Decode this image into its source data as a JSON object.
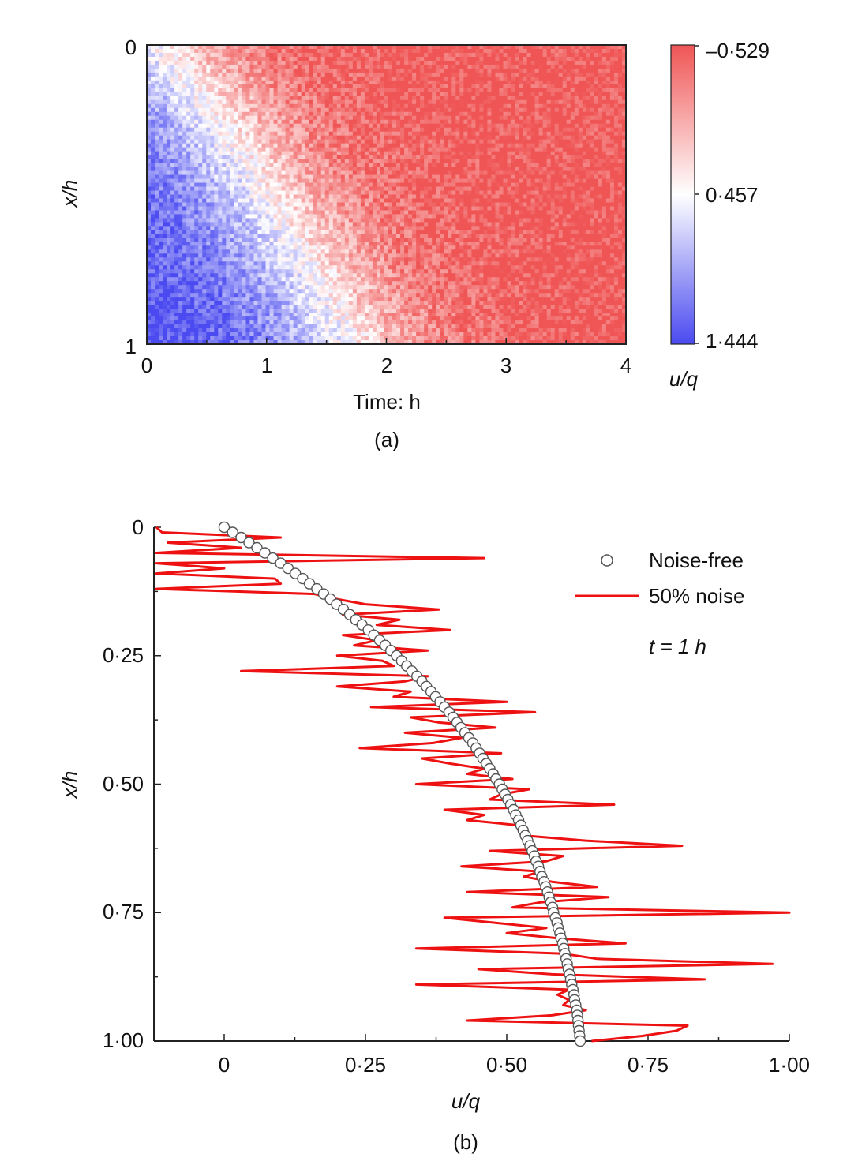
{
  "chart_data": [
    {
      "type": "heatmap",
      "panel_label": "(a)",
      "xlabel": "Time: h",
      "ylabel": "x/h",
      "xlim": [
        0,
        4
      ],
      "ylim": [
        1,
        0
      ],
      "x_ticks": [
        "0",
        "1",
        "2",
        "3",
        "4"
      ],
      "y_ticks": [
        "0",
        "1"
      ],
      "colorbar": {
        "label": "u/q",
        "ticks": [
          "–0·529",
          "0·457",
          "1·444"
        ],
        "values": [
          -0.529,
          0.457,
          1.444
        ],
        "colors": [
          "#f05555",
          "#ffffff",
          "#4a4af0"
        ]
      },
      "description_values": "u/q high (blue, ~1.4) near x/h=1 at t=0, transitions through white (~0.46) along a front moving from t≈0 at x/h=0 to t≈1.7 at x/h=1, red (~-0.5) elsewhere; speckled noise"
    },
    {
      "type": "line",
      "panel_label": "(b)",
      "xlabel": "u/q",
      "ylabel": "x/h",
      "xlim": [
        -0.12,
        1.0
      ],
      "ylim": [
        1.0,
        0
      ],
      "x_ticks": [
        "0",
        "0·25",
        "0·50",
        "0·75",
        "1·00"
      ],
      "x_tick_values": [
        0,
        0.25,
        0.5,
        0.75,
        1.0
      ],
      "y_ticks": [
        "0",
        "0·25",
        "0·50",
        "0·75",
        "1·00"
      ],
      "y_tick_values": [
        0,
        0.25,
        0.5,
        0.75,
        1.0
      ],
      "annotation": "t = 1 h",
      "series": [
        {
          "name": "Noise-free",
          "style": "open-circle",
          "color": "#555555",
          "x": [
            0.0,
            0.015,
            0.03,
            0.044,
            0.058,
            0.072,
            0.086,
            0.1,
            0.113,
            0.126,
            0.139,
            0.151,
            0.164,
            0.176,
            0.188,
            0.199,
            0.211,
            0.222,
            0.233,
            0.244,
            0.255,
            0.265,
            0.275,
            0.285,
            0.295,
            0.305,
            0.314,
            0.323,
            0.332,
            0.341,
            0.35,
            0.358,
            0.366,
            0.374,
            0.382,
            0.39,
            0.398,
            0.405,
            0.412,
            0.419,
            0.426,
            0.433,
            0.44,
            0.446,
            0.452,
            0.458,
            0.464,
            0.47,
            0.476,
            0.481,
            0.487,
            0.492,
            0.497,
            0.502,
            0.507,
            0.512,
            0.516,
            0.521,
            0.525,
            0.529,
            0.533,
            0.537,
            0.541,
            0.545,
            0.549,
            0.552,
            0.556,
            0.559,
            0.562,
            0.566,
            0.569,
            0.572,
            0.575,
            0.578,
            0.581,
            0.583,
            0.586,
            0.589,
            0.591,
            0.594,
            0.596,
            0.599,
            0.601,
            0.603,
            0.605,
            0.607,
            0.609,
            0.611,
            0.613,
            0.615,
            0.617,
            0.619,
            0.62,
            0.622,
            0.624,
            0.625,
            0.626,
            0.627,
            0.628,
            0.629,
            0.63
          ],
          "y": [
            0.0,
            0.01,
            0.02,
            0.03,
            0.04,
            0.05,
            0.06,
            0.07,
            0.08,
            0.09,
            0.1,
            0.11,
            0.12,
            0.13,
            0.14,
            0.15,
            0.16,
            0.17,
            0.18,
            0.19,
            0.2,
            0.21,
            0.22,
            0.23,
            0.24,
            0.25,
            0.26,
            0.27,
            0.28,
            0.29,
            0.3,
            0.31,
            0.32,
            0.33,
            0.34,
            0.35,
            0.36,
            0.37,
            0.38,
            0.39,
            0.4,
            0.41,
            0.42,
            0.43,
            0.44,
            0.45,
            0.46,
            0.47,
            0.48,
            0.49,
            0.5,
            0.51,
            0.52,
            0.53,
            0.54,
            0.55,
            0.56,
            0.57,
            0.58,
            0.59,
            0.6,
            0.61,
            0.62,
            0.63,
            0.64,
            0.65,
            0.66,
            0.67,
            0.68,
            0.69,
            0.7,
            0.71,
            0.72,
            0.73,
            0.74,
            0.75,
            0.76,
            0.77,
            0.78,
            0.79,
            0.8,
            0.81,
            0.82,
            0.83,
            0.84,
            0.85,
            0.86,
            0.87,
            0.88,
            0.89,
            0.9,
            0.91,
            0.92,
            0.93,
            0.94,
            0.95,
            0.96,
            0.97,
            0.98,
            0.99,
            1.0
          ]
        },
        {
          "name": "50% noise",
          "style": "line",
          "color": "#ee1111",
          "x": [
            -0.12,
            -0.11,
            0.1,
            -0.1,
            0.03,
            -0.12,
            0.46,
            -0.12,
            0.0,
            -0.12,
            0.09,
            0.1,
            -0.12,
            0.16,
            0.2,
            0.25,
            0.38,
            0.21,
            0.31,
            0.27,
            0.4,
            0.21,
            0.27,
            0.23,
            0.36,
            0.2,
            0.28,
            0.3,
            0.03,
            0.36,
            0.32,
            0.2,
            0.33,
            0.3,
            0.5,
            0.26,
            0.55,
            0.33,
            0.38,
            0.48,
            0.32,
            0.42,
            0.37,
            0.24,
            0.49,
            0.35,
            0.4,
            0.46,
            0.43,
            0.51,
            0.34,
            0.54,
            0.49,
            0.47,
            0.69,
            0.39,
            0.46,
            0.43,
            0.52,
            0.53,
            0.53,
            0.64,
            0.81,
            0.47,
            0.6,
            0.57,
            0.42,
            0.56,
            0.53,
            0.58,
            0.66,
            0.43,
            0.68,
            0.56,
            0.51,
            1.0,
            0.39,
            0.48,
            0.57,
            0.5,
            0.59,
            0.71,
            0.34,
            0.6,
            0.66,
            0.97,
            0.45,
            0.58,
            0.85,
            0.34,
            0.61,
            0.59,
            0.61,
            0.6,
            0.64,
            0.58,
            0.43,
            0.82,
            0.8,
            0.74,
            0.65
          ],
          "y": [
            0.0,
            0.01,
            0.02,
            0.03,
            0.04,
            0.05,
            0.06,
            0.07,
            0.08,
            0.09,
            0.1,
            0.11,
            0.12,
            0.13,
            0.14,
            0.15,
            0.16,
            0.17,
            0.18,
            0.19,
            0.2,
            0.21,
            0.22,
            0.23,
            0.24,
            0.25,
            0.26,
            0.27,
            0.28,
            0.29,
            0.3,
            0.31,
            0.32,
            0.33,
            0.34,
            0.35,
            0.36,
            0.37,
            0.38,
            0.39,
            0.4,
            0.41,
            0.42,
            0.43,
            0.44,
            0.45,
            0.46,
            0.47,
            0.48,
            0.49,
            0.5,
            0.51,
            0.52,
            0.53,
            0.54,
            0.55,
            0.56,
            0.57,
            0.58,
            0.59,
            0.6,
            0.61,
            0.62,
            0.63,
            0.64,
            0.65,
            0.66,
            0.67,
            0.68,
            0.69,
            0.7,
            0.71,
            0.72,
            0.73,
            0.74,
            0.75,
            0.76,
            0.77,
            0.78,
            0.79,
            0.8,
            0.81,
            0.82,
            0.83,
            0.84,
            0.85,
            0.86,
            0.87,
            0.88,
            0.89,
            0.9,
            0.91,
            0.92,
            0.93,
            0.94,
            0.95,
            0.96,
            0.97,
            0.98,
            0.99,
            1.0
          ]
        }
      ]
    }
  ]
}
